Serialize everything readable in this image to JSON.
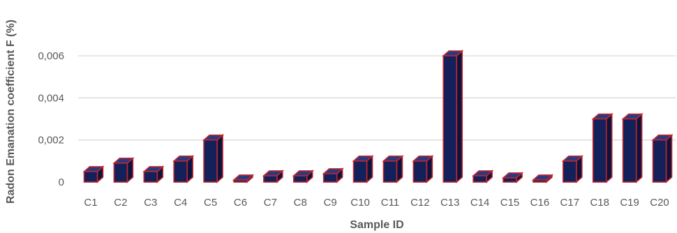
{
  "chart_data": {
    "type": "bar",
    "title": "",
    "xlabel": "Sample ID",
    "ylabel": "Radon Emanation coefficient F (%)",
    "categories": [
      "C1",
      "C2",
      "C3",
      "C4",
      "C5",
      "C6",
      "C7",
      "C8",
      "C9",
      "C10",
      "C11",
      "C12",
      "C13",
      "C14",
      "C15",
      "C16",
      "C17",
      "C18",
      "C19",
      "C20"
    ],
    "values": [
      0.0005,
      0.0009,
      0.0005,
      0.001,
      0.002,
      0.0001,
      0.0003,
      0.0003,
      0.0004,
      0.001,
      0.001,
      0.001,
      0.006,
      0.0003,
      0.0002,
      0.0001,
      0.001,
      0.003,
      0.003,
      0.002
    ],
    "yticks": [
      "0",
      "0,002",
      "0,004",
      "0,006"
    ],
    "ylim": [
      0,
      0.006
    ],
    "grid": true,
    "style": "3d-column",
    "colors": {
      "bar": "#13205a",
      "bar_side": "#0b1440",
      "bar_top": "#2a3a82",
      "bar_edge": "#c0262c",
      "grid": "#d9d9d9",
      "text": "#595959"
    }
  }
}
